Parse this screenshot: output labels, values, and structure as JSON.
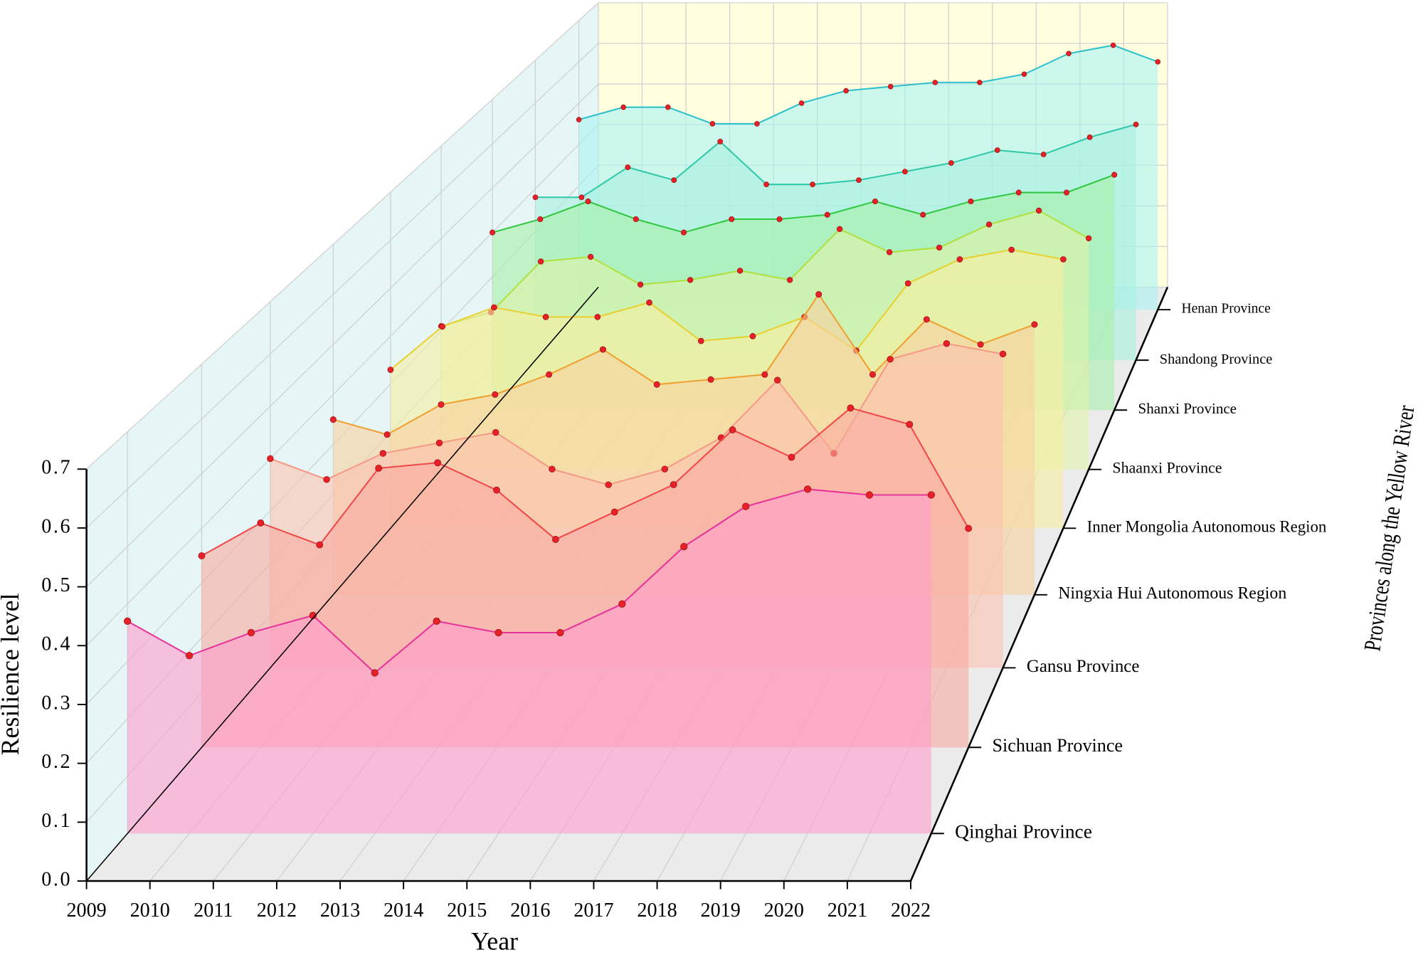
{
  "chart_data": {
    "type": "waterfall",
    "x_label": "Year",
    "y_label": "Resilience level",
    "z_label": "Provinces along the Yellow River",
    "x": [
      2009,
      2010,
      2011,
      2012,
      2013,
      2014,
      2015,
      2016,
      2017,
      2018,
      2019,
      2020,
      2021,
      2022
    ],
    "xlim": [
      2009,
      2022
    ],
    "xticks": [
      2009,
      2010,
      2011,
      2012,
      2013,
      2014,
      2015,
      2016,
      2017,
      2018,
      2019,
      2020,
      2021,
      2022
    ],
    "ylim": [
      0,
      0.7
    ],
    "yticks": [
      {
        "value": 0,
        "label": "0.0"
      },
      0.1,
      0.2,
      0.3,
      0.4,
      0.5,
      0.6,
      0.7
    ],
    "grid": true,
    "marker_color": "#e8202a",
    "series": [
      {
        "name": "Qinghai Province",
        "color": "#e8339a",
        "fill": "#ff9ccb",
        "values": [
          0.37,
          0.31,
          0.35,
          0.38,
          0.28,
          0.37,
          0.35,
          0.35,
          0.4,
          0.5,
          0.57,
          0.6,
          0.59,
          0.59
        ]
      },
      {
        "name": "Sichuan Province",
        "color": "#f04848",
        "fill": "#f8aaa0",
        "values": [
          0.35,
          0.41,
          0.37,
          0.51,
          0.52,
          0.47,
          0.38,
          0.43,
          0.48,
          0.58,
          0.53,
          0.62,
          0.59,
          0.4
        ]
      },
      {
        "name": "Gansu Province",
        "color": "#f59a86",
        "fill": "#fbc2b0",
        "values": [
          0.4,
          0.36,
          0.41,
          0.43,
          0.45,
          0.38,
          0.35,
          0.38,
          0.44,
          0.55,
          0.41,
          0.59,
          0.62,
          0.6
        ]
      },
      {
        "name": "Ningxia Hui Autonomous Region",
        "color": "#f0a030",
        "fill": "#f8d0a0",
        "values": [
          0.35,
          0.32,
          0.38,
          0.4,
          0.44,
          0.49,
          0.42,
          0.43,
          0.44,
          0.6,
          0.44,
          0.55,
          0.5,
          0.54
        ]
      },
      {
        "name": "Inner Mongolia Autonomous Region",
        "color": "#e8d030",
        "fill": "#f6eea0",
        "values": [
          0.33,
          0.42,
          0.46,
          0.44,
          0.44,
          0.47,
          0.39,
          0.4,
          0.44,
          0.37,
          0.51,
          0.56,
          0.58,
          0.56
        ]
      },
      {
        "name": "Shaanxi Province",
        "color": "#b0e040",
        "fill": "#e0f4a8",
        "values": [
          0.31,
          0.34,
          0.45,
          0.46,
          0.4,
          0.41,
          0.43,
          0.41,
          0.52,
          0.47,
          0.48,
          0.53,
          0.56,
          0.5
        ]
      },
      {
        "name": "Shanxi Province",
        "color": "#30c840",
        "fill": "#a8f0a8",
        "values": [
          0.4,
          0.43,
          0.47,
          0.43,
          0.4,
          0.43,
          0.43,
          0.44,
          0.47,
          0.44,
          0.47,
          0.49,
          0.49,
          0.53
        ]
      },
      {
        "name": "Shandong Province",
        "color": "#30c8a8",
        "fill": "#a8f0e0",
        "values": [
          0.38,
          0.38,
          0.45,
          0.42,
          0.51,
          0.41,
          0.41,
          0.42,
          0.44,
          0.46,
          0.49,
          0.48,
          0.52,
          0.55
        ]
      },
      {
        "name": "Henan Province",
        "color": "#30c0cc",
        "fill": "#a8f4f0",
        "values": [
          0.46,
          0.49,
          0.49,
          0.45,
          0.45,
          0.5,
          0.53,
          0.54,
          0.55,
          0.55,
          0.57,
          0.62,
          0.64,
          0.6
        ]
      }
    ]
  }
}
